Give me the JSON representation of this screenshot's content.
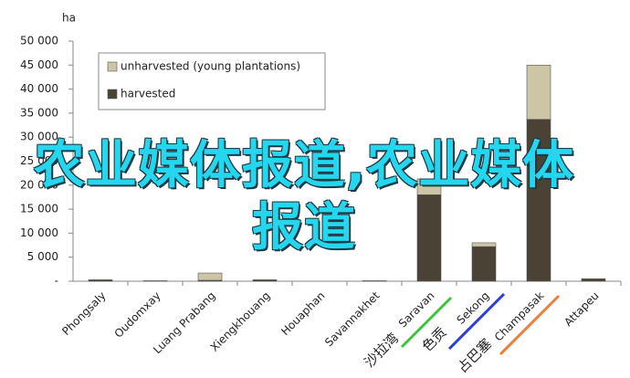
{
  "chart_data": {
    "type": "stacked_bar",
    "y_label": "ha",
    "categories": [
      "Phongsaly",
      "Oudomxay",
      "Luang Prabang",
      "Xiengkhouang",
      "Houaphan",
      "Savannakhet",
      "Saravan",
      "Sekong",
      "Champasak",
      "Attapeu"
    ],
    "series": [
      {
        "name": "harvested",
        "color": "#4b4236",
        "values": [
          300,
          100,
          200,
          300,
          0,
          100,
          18000,
          7200,
          33700,
          500
        ]
      },
      {
        "name": "unharvested (young plantations)",
        "color": "#ccc6a6",
        "values": [
          0,
          0,
          1500,
          0,
          0,
          0,
          3300,
          800,
          11300,
          0
        ]
      }
    ],
    "ylim": [
      0,
      50000
    ],
    "yticks": [
      {
        "value": 0,
        "label": "-"
      },
      {
        "value": 5000,
        "label": "5 000"
      },
      {
        "value": 10000,
        "label": "10 000"
      },
      {
        "value": 15000,
        "label": "15 000"
      },
      {
        "value": 20000,
        "label": "20 000"
      },
      {
        "value": 25000,
        "label": "25 000"
      },
      {
        "value": 30000,
        "label": "30 000"
      },
      {
        "value": 35000,
        "label": "35 000"
      },
      {
        "value": 40000,
        "label": "40 000"
      },
      {
        "value": 45000,
        "label": "45 000"
      },
      {
        "value": 50000,
        "label": "50 000"
      }
    ],
    "grid": false,
    "legend": "top-left",
    "annotations": [
      {
        "text": "沙拉湾",
        "color": "#f07c1e"
      },
      {
        "text": "色贡",
        "color": "#2a6fdb"
      },
      {
        "text": "占巴塞",
        "color": "#f0502a"
      }
    ],
    "overlay_text": "农业媒体报道,农业媒体报道"
  }
}
